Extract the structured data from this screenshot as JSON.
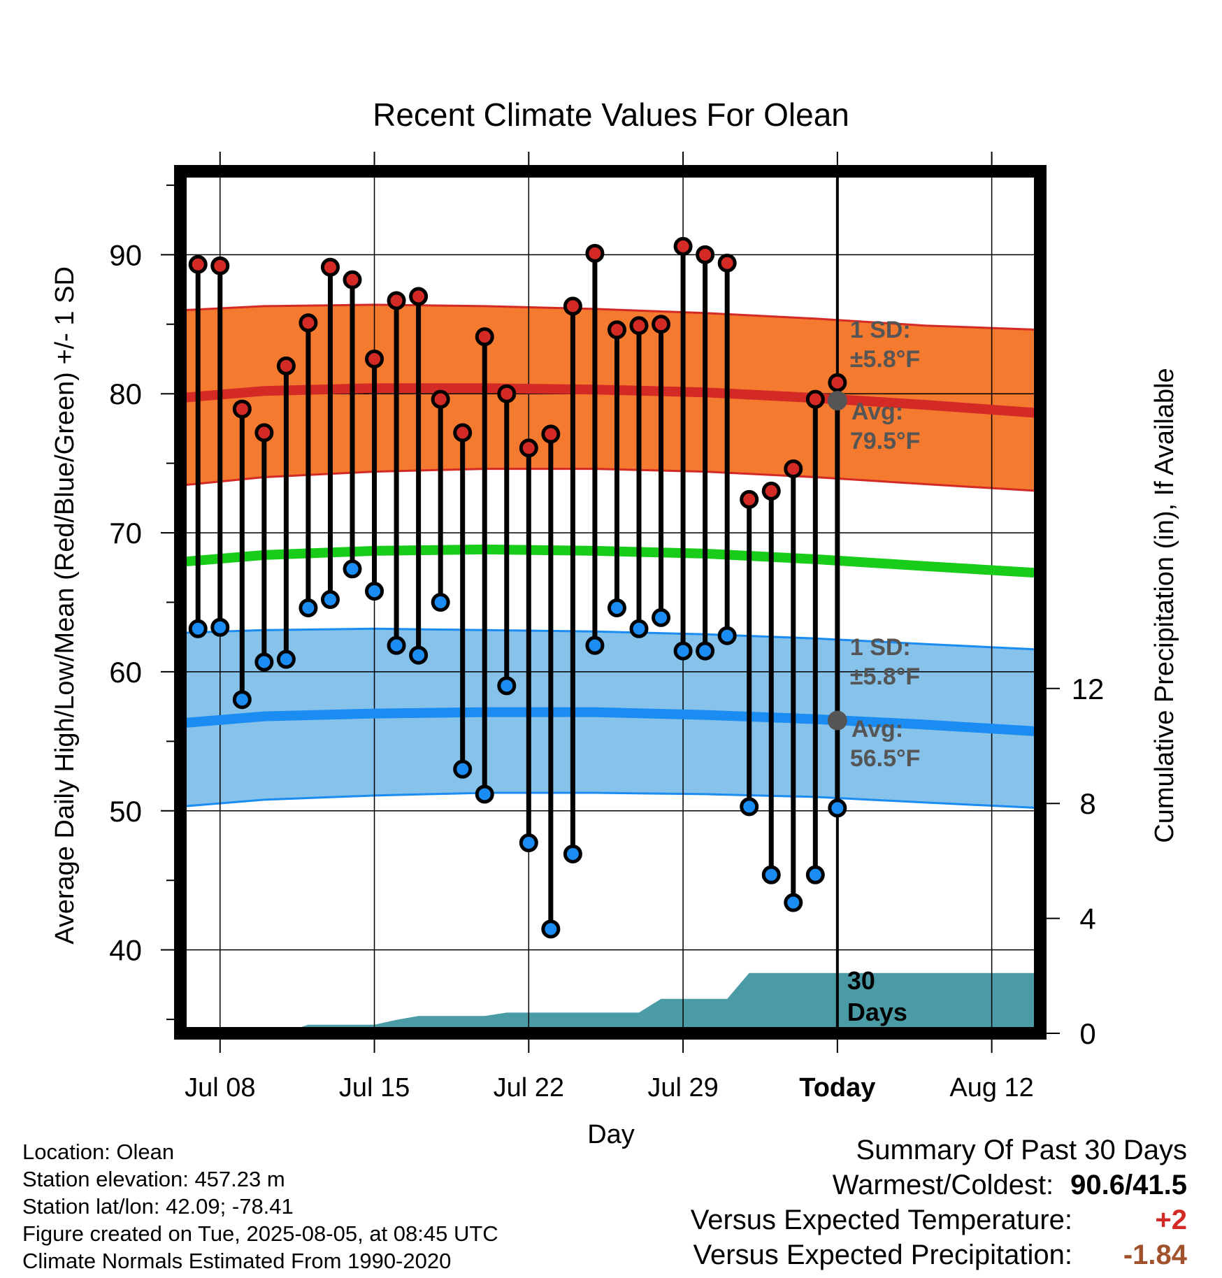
{
  "chart_data": {
    "type": "line",
    "title": "Recent Climate Values For Olean",
    "xlabel": "Day",
    "ylabel": "Average Daily High/Low/Mean (Red/Blue/Green) +/- 1 SD",
    "y2label": "Cumulative Precipitation (in), If Available",
    "ylim": [
      34,
      96
    ],
    "y2lim": [
      0,
      30
    ],
    "yticks": [
      40,
      50,
      60,
      70,
      80,
      90
    ],
    "y2ticks": [
      0,
      4,
      8,
      12
    ],
    "xtick_labels": [
      {
        "day": 8,
        "label": "Jul 08"
      },
      {
        "day": 15,
        "label": "Jul 15"
      },
      {
        "day": 22,
        "label": "Jul 22"
      },
      {
        "day": 29,
        "label": "Jul 29"
      },
      {
        "day": 36,
        "label": "Today"
      },
      {
        "day": 43,
        "label": "Aug 12"
      }
    ],
    "grid": true,
    "today_day": 36,
    "x_days": [
      7,
      8,
      9,
      10,
      11,
      12,
      13,
      14,
      15,
      16,
      17,
      18,
      19,
      20,
      21,
      22,
      23,
      24,
      25,
      26,
      27,
      28,
      29,
      30,
      31,
      32,
      33,
      34,
      35,
      36
    ],
    "series": [
      {
        "name": "High",
        "values": [
          89.3,
          89.2,
          78.9,
          77.2,
          82.0,
          85.1,
          89.1,
          88.2,
          82.5,
          86.7,
          87.0,
          79.6,
          77.2,
          84.1,
          80.0,
          76.1,
          77.1,
          86.3,
          90.1,
          84.6,
          84.9,
          85.0,
          90.6,
          90.0,
          89.4,
          72.4,
          73.0,
          74.6,
          79.6,
          80.8
        ]
      },
      {
        "name": "Low",
        "values": [
          63.1,
          63.2,
          58.0,
          60.7,
          60.9,
          64.6,
          65.2,
          67.4,
          65.8,
          61.9,
          61.2,
          65.0,
          53.0,
          51.2,
          59.0,
          47.7,
          41.5,
          46.9,
          61.9,
          64.6,
          63.1,
          63.9,
          61.5,
          61.5,
          62.6,
          50.3,
          45.4,
          43.4,
          45.4,
          50.2
        ]
      }
    ],
    "normals_x": [
      6.2,
      10,
      15,
      20,
      25,
      30,
      35,
      40,
      45.2
    ],
    "normal_high": [
      79.7,
      80.2,
      80.4,
      80.4,
      80.3,
      80.1,
      79.7,
      79.2,
      78.6
    ],
    "normal_high_upper": [
      86.0,
      86.3,
      86.4,
      86.3,
      86.1,
      85.8,
      85.4,
      84.9,
      84.6
    ],
    "normal_high_lower": [
      73.4,
      74.0,
      74.4,
      74.6,
      74.6,
      74.4,
      74.0,
      73.5,
      73.0
    ],
    "normal_mean": [
      67.9,
      68.4,
      68.7,
      68.8,
      68.7,
      68.5,
      68.1,
      67.6,
      67.1
    ],
    "normal_low": [
      56.3,
      56.8,
      57.0,
      57.1,
      57.1,
      56.9,
      56.6,
      56.2,
      55.7
    ],
    "normal_low_upper": [
      62.8,
      63.0,
      63.1,
      63.0,
      62.9,
      62.7,
      62.4,
      62.0,
      61.6
    ],
    "normal_low_lower": [
      50.3,
      50.8,
      51.1,
      51.3,
      51.3,
      51.2,
      51.0,
      50.6,
      50.2
    ],
    "precip_x": [
      6.2,
      10,
      10.5,
      11,
      12,
      13,
      14,
      15,
      16,
      17,
      18,
      19,
      20,
      21,
      22,
      23,
      24,
      25,
      26,
      27,
      28,
      29,
      30,
      31,
      32,
      33,
      34,
      35,
      36,
      37,
      38,
      39,
      40,
      41,
      42,
      43,
      44,
      45.2
    ],
    "precip_values": [
      0,
      0.01,
      0.05,
      0.05,
      0.3,
      0.3,
      0.3,
      0.3,
      0.47,
      0.6,
      0.6,
      0.6,
      0.6,
      0.72,
      0.72,
      0.72,
      0.72,
      0.72,
      0.72,
      0.72,
      1.2,
      1.2,
      1.2,
      1.2,
      2.1,
      2.1,
      2.1,
      2.1,
      2.1,
      2.1,
      2.1,
      2.1,
      2.1,
      2.1,
      2.1,
      2.1,
      2.1,
      2.1
    ],
    "annotations": {
      "high_sd_line1": "1 SD:",
      "high_sd_line2": "±5.8°F",
      "high_avg_line1": "Avg:",
      "high_avg_line2": "79.5°F",
      "low_sd_line1": "1 SD:",
      "low_sd_line2": "±5.8°F",
      "low_avg_line1": "Avg:",
      "low_avg_line2": "56.5°F",
      "today_high_avg": 79.5,
      "today_low_avg": 56.5,
      "period_line1": "30",
      "period_line2": "Days"
    },
    "colors": {
      "high_band": "#f47a2f",
      "high_line": "#d42a25",
      "mean_line": "#19cc19",
      "low_band": "#86c2ea",
      "low_line": "#1a8cf2",
      "precip": "#4a9ba6",
      "high_dot": "#d42a25",
      "low_dot": "#1a8cf2",
      "today_dot": "#555555",
      "annotation_text": "#555555"
    }
  },
  "info": {
    "location": "Location: Olean",
    "elevation": "Station elevation: 457.23 m",
    "latlon": "Station lat/lon: 42.09; -78.41",
    "created": "Figure created on Tue, 2025-08-05, at 08:45 UTC",
    "normals": "Climate Normals Estimated From 1990-2020"
  },
  "summary": {
    "heading": "Summary Of Past 30 Days",
    "warmest_label": "Warmest/Coldest:",
    "warmest_value": "90.6/41.5",
    "temp_label": "Versus Expected Temperature:",
    "temp_value": "+2",
    "temp_color": "#d42a25",
    "precip_label": "Versus Expected Precipitation:",
    "precip_value": "-1.84",
    "precip_color": "#a0522d"
  }
}
